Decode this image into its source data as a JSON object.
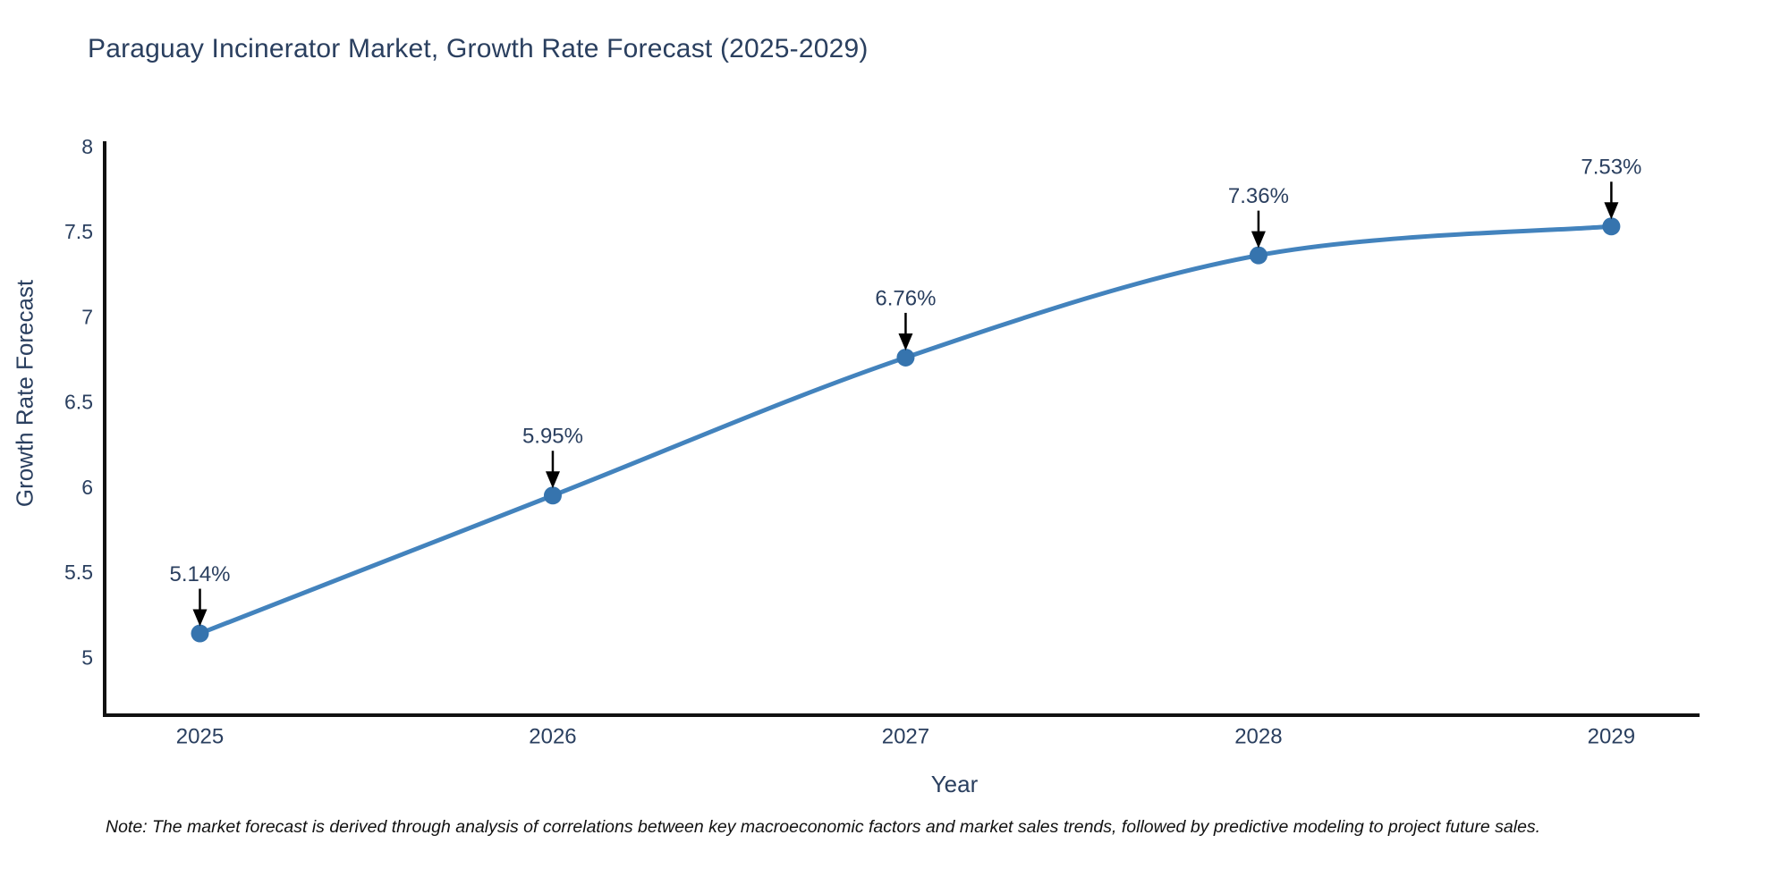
{
  "title": "Paraguay Incinerator Market, Growth Rate Forecast (2025-2029)",
  "note": "Note: The market forecast is derived through analysis of correlations between key macroeconomic factors and market sales trends, followed by predictive modeling to project future sales.",
  "chart_data": {
    "type": "line",
    "x": [
      2025,
      2026,
      2027,
      2028,
      2029
    ],
    "categories": [
      "2025",
      "2026",
      "2027",
      "2028",
      "2029"
    ],
    "series": [
      {
        "name": "Growth Rate Forecast",
        "values": [
          5.14,
          5.95,
          6.76,
          7.36,
          7.53
        ]
      }
    ],
    "point_labels": [
      "5.14%",
      "5.95%",
      "6.76%",
      "7.36%",
      "7.53%"
    ],
    "title": "Paraguay Incinerator Market, Growth Rate Forecast (2025-2029)",
    "xlabel": "Year",
    "ylabel": "Growth Rate Forecast",
    "y_ticks": [
      5,
      5.5,
      6,
      6.5,
      7,
      7.5,
      8
    ],
    "ylim": [
      4.66,
      8.03
    ],
    "xlim": [
      2024.73,
      2029.25
    ],
    "grid": false,
    "legend": "none",
    "line_shape": "spline",
    "annotation_style": "down-arrow",
    "colors": {
      "line": "#4383bd",
      "marker": "#3674ae",
      "axis": "#111111",
      "tick_text": "#2a3f5f",
      "title_text": "#2a3f5f",
      "annotation_text": "#2a3f5f",
      "annotation_arrow": "#000000",
      "background": "#ffffff"
    }
  }
}
